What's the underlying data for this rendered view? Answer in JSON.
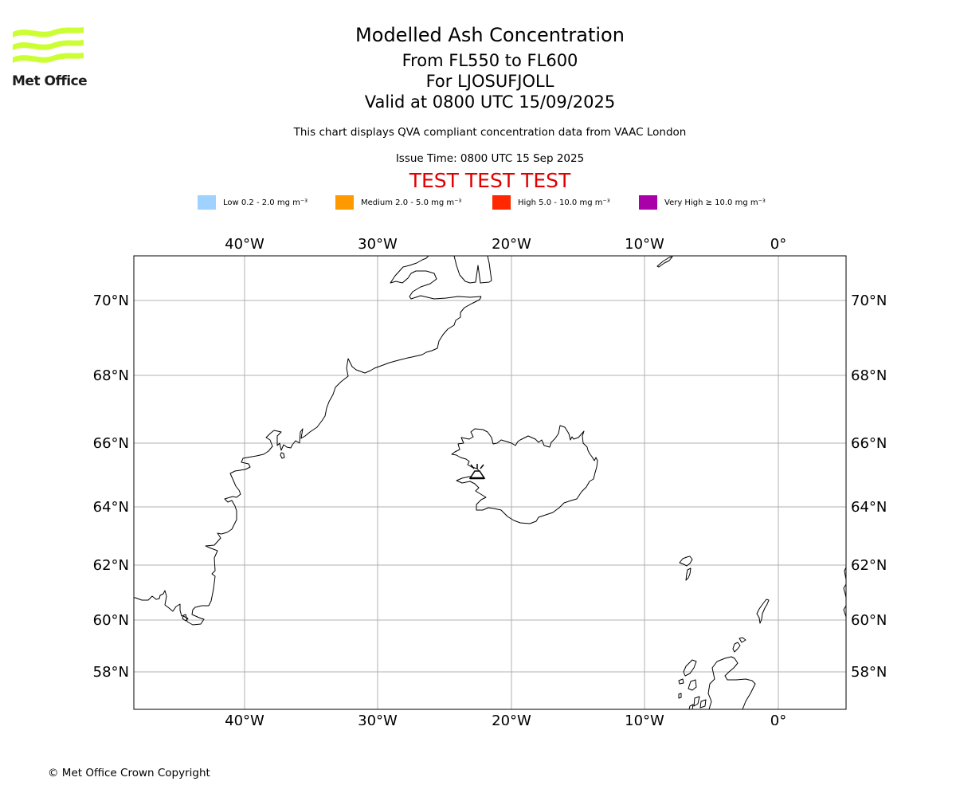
{
  "logo": {
    "text": "Met Office",
    "color": "#ccff33"
  },
  "title": {
    "main": "Modelled Ash Concentration",
    "levels": "From FL550 to FL600",
    "volcano": "For LJOSUFJOLL",
    "valid": "Valid at 0800 UTC 15/09/2025",
    "subtitle": "This chart displays QVA compliant concentration data from VAAC London",
    "issue_time": "Issue Time: 0800 UTC 15 Sep 2025",
    "test_banner": "TEST TEST TEST"
  },
  "legend": [
    {
      "label": "Low 0.2 - 2.0 mg m⁻³",
      "color": "#a0d2ff"
    },
    {
      "label": "Medium 2.0 - 5.0 mg m⁻³",
      "color": "#ff9900"
    },
    {
      "label": "High 5.0 - 10.0 mg m⁻³",
      "color": "#ff2800"
    },
    {
      "label": "Very High ≥ 10.0 mg m⁻³",
      "color": "#aa00aa"
    }
  ],
  "map": {
    "lon_ticks": [
      "40°W",
      "30°W",
      "20°W",
      "10°W",
      "0°"
    ],
    "lat_ticks": [
      "70°N",
      "68°N",
      "66°N",
      "64°N",
      "62°N",
      "60°N",
      "58°N"
    ],
    "volcano_name": "LJOSUFJOLL",
    "gridline_color": "#b0b0b0",
    "coast_color": "#000000"
  },
  "copyright": "© Met Office Crown Copyright"
}
